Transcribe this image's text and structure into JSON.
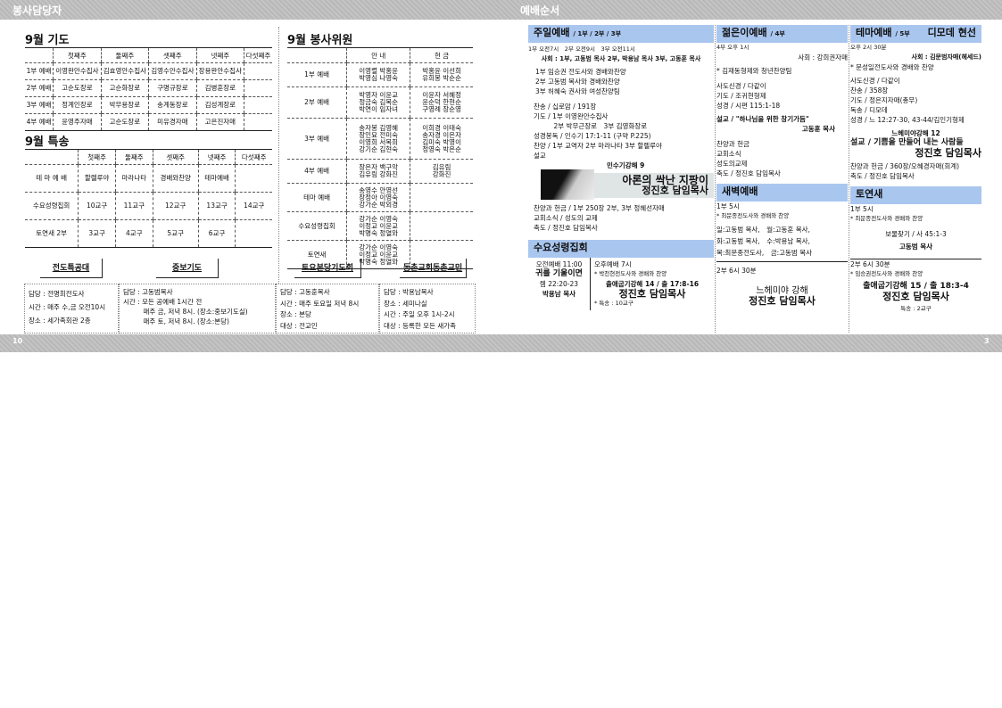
{
  "header": {
    "left": "봉사담당자",
    "right": "예배순서"
  },
  "footer": {
    "left_page": "10",
    "right_page": "3"
  },
  "prayer": {
    "title": "9월 기도",
    "cols": [
      "",
      "첫째주",
      "둘째주",
      "셋째주",
      "넷째주",
      "다섯째주"
    ],
    "rows": [
      [
        "1부 예배",
        "이영완안수집사",
        "김효영안수집사",
        "김영수안수집사",
        "장용완안수집사",
        ""
      ],
      [
        "2부 예배",
        "고순도장로",
        "고순화장로",
        "구명규장로",
        "김병훈장로",
        ""
      ],
      [
        "3부 예배",
        "정계인장로",
        "박무용장로",
        "송계동장로",
        "김성계장로",
        ""
      ],
      [
        "4부 예배",
        "윤영주자매",
        "고순도장로",
        "미유경자매",
        "고은진자매",
        ""
      ]
    ]
  },
  "special": {
    "title": "9월 특송",
    "cols": [
      "",
      "첫째주",
      "둘째주",
      "셋째주",
      "넷째주",
      "다섯째주"
    ],
    "rows": [
      [
        "테 마 예 배",
        "할렐루야",
        "마라나타",
        "경배와찬양",
        "테마예배",
        ""
      ],
      [
        "수요성령집회",
        "10교구",
        "11교구",
        "12교구",
        "13교구",
        "14교구"
      ],
      [
        "토연새 2부",
        "3교구",
        "4교구",
        "5교구",
        "6교구",
        ""
      ]
    ]
  },
  "service": {
    "title": "9월 봉사위원",
    "cols": [
      "",
      "안 내",
      "헌 금"
    ],
    "rows": [
      [
        "1부 예배",
        "이영렬 박홍윤\n박영심 나영숙",
        "박홍윤 이선희\n유희봉 박순순"
      ],
      [
        "2부 예배",
        "박영자 이윤교\n정금숙 김복순\n박연이 임자녀",
        "이윤자 서혜정\n윤순덕 한현순\n구영례 장순영"
      ],
      [
        "3부 예배",
        "송자봉 김영혜\n장인묘 전미숙\n이영희 서복희\n강기순 김현숙",
        "이희경 이태숙\n송자경 이은자\n김미숙 박영이\n정영숙 박은순"
      ],
      [
        "4부 예배",
        "장은자 백구악\n김유림 강화진",
        "김유림\n강화진"
      ],
      [
        "테마 예배",
        "송영수 안영선\n장정아 이영숙\n강가순 박외경",
        ""
      ],
      [
        "수요성령집회",
        "강가순 이영숙\n이정교 이윤교\n박명숙 정열와",
        ""
      ],
      [
        "토연새",
        "강가순 이영숙\n이정교 이윤교\n박명숙 정열와",
        ""
      ]
    ]
  },
  "buttons": [
    "전도특공대",
    "중보기도",
    "토요본당기도회",
    "동촌교회동촌교민"
  ],
  "info": [
    [
      "담당 : 전명희전도사",
      "시간 : 매주 수,금 오전10시",
      "장소 : 세가족회관 2층"
    ],
    [
      "담당 : 고동범목사",
      "시간 : 모든 공예배 1시간 전",
      "　　　매주 금, 저녁 8시. (장소:중보기도실)",
      "　　　매주 토, 저녁 8시. (장소:본당)"
    ],
    [
      "담당 : 고동훈목사",
      "시간 : 매주 토요일 저녁 8시",
      "장소 : 본당",
      "대상 : 전교인"
    ],
    [
      "담당 : 박용남목사",
      "장소 : 세미나실",
      "시간 : 주일 오후 1시-2시",
      "대상 : 등록한 모든 새가족"
    ]
  ],
  "sunday": {
    "title": "주일예배",
    "sub": "/ 1부 / 2부 / 3부",
    "times": "1부 오전7시　2부 오전9시　3부 오전11시",
    "host": "사회 : 1부, 고동범 목사 2부, 박용남 목사 3부, 고동훈 목사",
    "lines1": [
      "1부 임승권 전도사와 경배와찬양",
      "2부 고동범 목사와 경배와찬양",
      "3부 허혜숙 권사와 여성찬양팀"
    ],
    "lines2": [
      "찬송 / 십로암 / 191장",
      "기도 / 1부 이영완안수집사",
      "　　　2부 박무근장로　3부 김영화장로",
      "성경봉독 / 인수기 17:1-11 (구약 P.225)",
      "찬양 / 1부 교역자 2부 마라나타 3부 할렐루야",
      "설교"
    ],
    "series": "민수기강해 9",
    "sermon": "아론의 싹난 지팡이",
    "preacher": "정진호 담임목사",
    "lines3": [
      "찬양과 헌금 / 1부 250장 2부, 3부 정혜선자매",
      "교회소식 / 성도의 교제",
      "축도 / 정진호 담임목사"
    ]
  },
  "wed": {
    "title": "수요성령집회",
    "am": "오전예배 11:00",
    "am_title": "귀를 기울이면",
    "am_ref": "렘 22:20-23",
    "am_preacher": "박용남 목사",
    "pm": "오후예배 7시",
    "pm_praise": "* 박천현전도사와 경배와 찬양",
    "pm_series": "출애굽기강해 14 / 출 17:8-16",
    "pm_preacher": "정진호 담임목사",
    "pm_special": "* 특송 : 10교구"
  },
  "youth": {
    "title": "젊은이예배",
    "sub": "/ 4부",
    "time": "4부 오후 1시",
    "host": "사회 : 강희권자매",
    "lines": [
      "* 김재동형제와 청년찬양팀",
      "사도신경 / 다같이",
      "기도 / 조귀현형제",
      "성경 / 시편 115:1-18"
    ],
    "sermon": "설교 / \"하나님을 위한 창기가듬\"",
    "preacher": "고동훈 목사",
    "end": [
      "찬양과 헌금",
      "교회소식",
      "성도의교제",
      "축도 / 정진호 담임목사"
    ]
  },
  "theme": {
    "title": "테마예배",
    "sub": "/ 5부",
    "tag": "디모데 현선",
    "time": "오후 2시 30분",
    "host": "사회 : 김문범자매(헤세드)",
    "lines": [
      "* 문성일전도사와 경배와 찬양",
      "사도신경 / 다같이",
      "찬송 / 358장",
      "기도 / 정은지자매(총무)",
      "독송 / 디모데",
      "성경 / 느 12:27-30, 43-44/김인기형제"
    ],
    "series": "느헤미야강해 12",
    "sermon": "설교 / 기쁨을 만들어 내는 사람들",
    "preacher": "정진호 담임목사",
    "end": [
      "찬양과 헌금 / 360장/오혜경자매(회계)",
      "축도 / 정진호 담임목사"
    ]
  },
  "dawn": {
    "title": "새벽예배",
    "p1": "1부 5시",
    "praise": "* 최문종전도사와 경배와 찬양",
    "days": [
      "일:고동범 목사,　월:고동훈 목사,",
      "화:고동범 목사,　수:박용남 목사,",
      "목:최문종전도사,　금:고동범 목사"
    ],
    "p2": "2부 6시 30분",
    "series": "느헤미야 강해",
    "preacher": "정진호 담임목사"
  },
  "sat": {
    "title": "토연새",
    "p1": "1부 5시",
    "praise1": "* 최문종전도사와 경배와 찬양",
    "s1": "보물찾기 / 사 45:1-3",
    "pr1": "고동범 목사",
    "p2": "2부 6시 30분",
    "praise2": "* 임승권전도사와 경배와 찬양",
    "s2": "출애굽기강해 15 / 출 18:3-4",
    "pr2": "정진호 담임목사",
    "special": "특송 : 2교구"
  },
  "colors": {
    "header_band": "#bdbdbd",
    "section_header": "#a9c6ef"
  }
}
